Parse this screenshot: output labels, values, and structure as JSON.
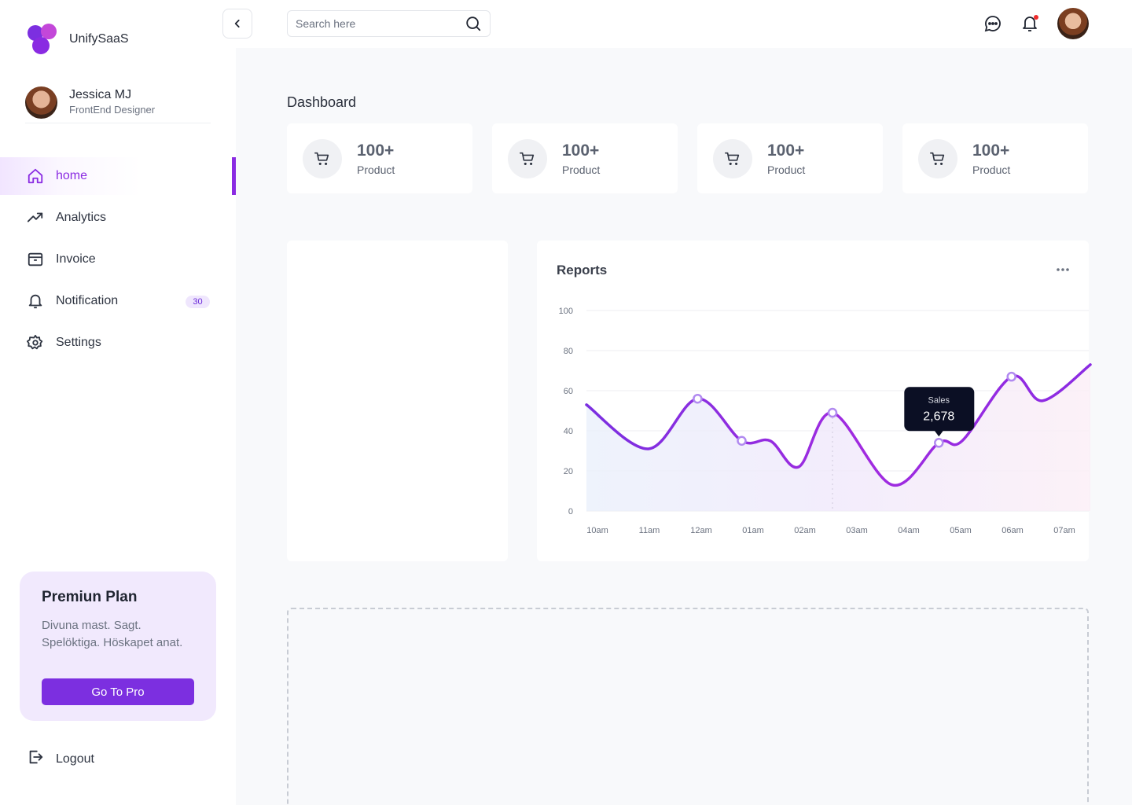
{
  "brand": {
    "name": "UnifySaaS"
  },
  "user": {
    "name": "Jessica MJ",
    "role": "FrontEnd Designer"
  },
  "nav": [
    {
      "label": "home",
      "icon": "home-icon",
      "active": true
    },
    {
      "label": "Analytics",
      "icon": "trending-up-icon"
    },
    {
      "label": "Invoice",
      "icon": "archive-box-icon"
    },
    {
      "label": "Notification",
      "icon": "bell-icon",
      "badge": "30"
    },
    {
      "label": "Settings",
      "icon": "gear-icon"
    }
  ],
  "promo": {
    "title": "Premiun Plan",
    "text": "Divuna mast. Sagt. Spelöktiga. Höskapet anat.",
    "button": "Go To Pro"
  },
  "logout": {
    "label": "Logout"
  },
  "search": {
    "placeholder": "Search here"
  },
  "page": {
    "title": "Dashboard"
  },
  "stats": [
    {
      "value": "100+",
      "label": "Product"
    },
    {
      "value": "100+",
      "label": "Product"
    },
    {
      "value": "100+",
      "label": "Product"
    },
    {
      "value": "100+",
      "label": "Product"
    }
  ],
  "colors": {
    "accent": "#8a2be2",
    "tooltip_bg": "#0b0f24",
    "notification_dot": "#ef2b2b"
  },
  "chart_data": {
    "type": "line",
    "title": "Reports",
    "categories": [
      "10am",
      "11am",
      "12am",
      "01am",
      "02am",
      "03am",
      "04am",
      "05am",
      "06am",
      "07am"
    ],
    "series": [
      {
        "values": [
          {
            "x": 0.0,
            "y": 53
          },
          {
            "x": 0.95,
            "y": 31
          },
          {
            "x": 1.9,
            "y": 56
          },
          {
            "x": 2.75,
            "y": 35
          },
          {
            "x": 3.3,
            "y": 35
          },
          {
            "x": 3.85,
            "y": 22
          },
          {
            "x": 4.5,
            "y": 49
          },
          {
            "x": 5.65,
            "y": 13
          },
          {
            "x": 6.55,
            "y": 34
          },
          {
            "x": 7.0,
            "y": 35
          },
          {
            "x": 7.95,
            "y": 67
          },
          {
            "x": 8.55,
            "y": 55
          },
          {
            "x": 9.55,
            "y": 73
          }
        ]
      }
    ],
    "markers": [
      {
        "x": 1.9,
        "y": 56
      },
      {
        "x": 2.75,
        "y": 35
      },
      {
        "x": 4.5,
        "y": 49
      },
      {
        "x": 6.55,
        "y": 34
      },
      {
        "x": 7.95,
        "y": 67
      }
    ],
    "guide_x": 4.5,
    "tooltip": {
      "x": 6.55,
      "y": 34,
      "label": "Sales",
      "value": "2,678"
    },
    "ylim": [
      0,
      100
    ],
    "yticks": [
      0,
      20,
      40,
      60,
      80,
      100
    ],
    "grid": true
  }
}
